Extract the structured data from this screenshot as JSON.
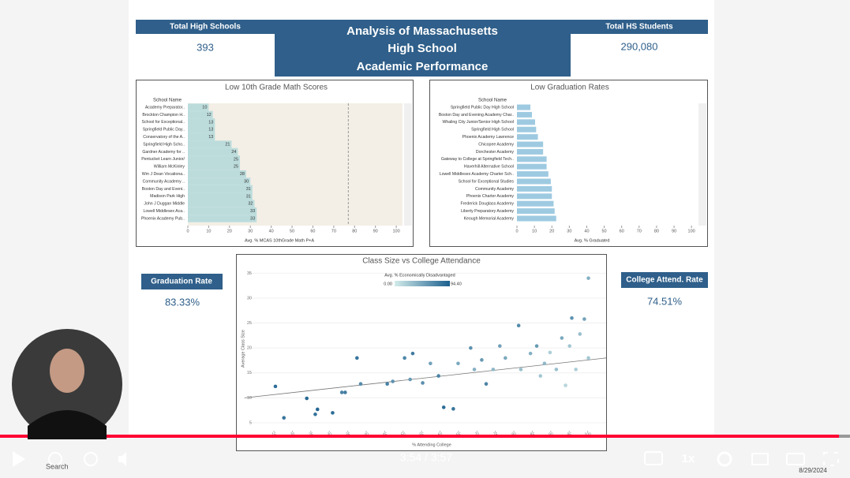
{
  "dashboard": {
    "title_lines": [
      "Analysis of Massachusetts",
      "High School",
      "Academic Performance"
    ],
    "kpis": [
      {
        "label": "Total High Schools",
        "value": "393"
      },
      {
        "label": "Total HS Students",
        "value": "290,080"
      },
      {
        "label": "Graduation Rate",
        "value": "83.33%"
      },
      {
        "label": "College Attend. Rate",
        "value": "74.51%"
      }
    ],
    "math_chart": {
      "type": "bar",
      "title": "Low 10th Grade Math Scores",
      "column_header": "School Name",
      "categories": [
        "Academy Preparator..",
        "Brockton Champion H..",
        "School for Exceptional..",
        "Springfield Public Day..",
        "Conservatory of the A..",
        "Springfield High Scho..",
        "Gardner Academy for ..",
        "Pentucket Learn Junior/",
        "William McKinley",
        "Wm J Dean Vocationa..",
        "Community Academy ..",
        "Boston Day and Eveni..",
        "Madison Park High",
        "John J Duggan Middle",
        "Lowell Middlesex Aca..",
        "Phoenix Academy Pub.."
      ],
      "values": [
        10,
        12,
        13,
        13,
        13,
        21,
        24,
        25,
        25,
        28,
        30,
        31,
        31,
        32,
        33,
        33
      ],
      "color": "#bcdcdc",
      "reference_line": 77,
      "xlim": [
        0,
        103
      ],
      "xticks": [
        0,
        10,
        20,
        30,
        40,
        50,
        60,
        70,
        80,
        90,
        100
      ],
      "x_label": "Avg. % MCAS 10thGrade Math P+A"
    },
    "grad_chart": {
      "type": "bar",
      "title": "Low Graduation Rates",
      "column_header": "School Name",
      "categories": [
        "Springfield Public Day High School",
        "Boston Day and Evening Academy Char..",
        "Whaling City Junior/Senior High School",
        "Springfield High School",
        "Phoenix Academy Lawrence",
        "Chicopee Academy",
        "Dorchester Academy",
        "Gateway to College at Springfield Tech..",
        "Haverhill Alternative School",
        "Lowell Middlesex Academy Charter Sch..",
        "School for Exceptional Studies",
        "Community Academy",
        "Phoenix Charter Academy",
        "Frederick Douglass Academy",
        "Liberty Preparatory Academy",
        "Keough Memorial Academy"
      ],
      "values": [
        7.7,
        8.6,
        10.4,
        11,
        12,
        15,
        15,
        17,
        17,
        18,
        19.4,
        20,
        20,
        21,
        21.6,
        22.5
      ],
      "color": "#9ecae1",
      "xlim": [
        0,
        104
      ],
      "xticks": [
        0,
        10,
        20,
        30,
        40,
        50,
        60,
        70,
        80,
        90,
        100
      ],
      "x_label": "Avg. % Graduated"
    },
    "scatter_chart": {
      "type": "scatter",
      "title": "Class Size vs College Attendance",
      "legend_title": "Avg. % Economically Disadvantaged",
      "legend_ticks": [
        {
          "value": 0,
          "label": "0.00"
        },
        {
          "value": 94.4,
          "label": "94.40"
        }
      ],
      "color_range": [
        "#d3ecea",
        "#1b5f8e"
      ],
      "x": [
        15.4,
        17.7,
        23.9,
        26.2,
        26.8,
        30.9,
        33.4,
        34.3,
        37.5,
        38.5,
        45.7,
        47.2,
        50.4,
        51.9,
        52.6,
        55.3,
        57.4,
        59.6,
        61,
        63.6,
        64.9,
        68.3,
        69.3,
        71.3,
        72.5,
        74.4,
        76.2,
        77.7,
        81.3,
        81.9,
        84.5,
        86.2,
        87.2,
        88.3,
        89.8,
        91.5,
        93,
        94,
        95.1,
        95.7,
        96.8,
        97.9,
        99.1,
        100.2,
        100.2
      ],
      "y": [
        12.3,
        6,
        9.9,
        6.7,
        7.7,
        7,
        11.1,
        11.1,
        18,
        12.8,
        12.8,
        13.3,
        18,
        13.7,
        18.9,
        13,
        16.9,
        14.4,
        8.1,
        7.8,
        16.9,
        20,
        15.7,
        17.6,
        12.8,
        15.7,
        20.4,
        18,
        24.5,
        15.7,
        18.9,
        20.4,
        14.4,
        16.9,
        19.1,
        15.7,
        22,
        12.5,
        20.4,
        26,
        15.7,
        22.8,
        25.8,
        18,
        34
      ],
      "econ": [
        85,
        80,
        88,
        82,
        90,
        86,
        70,
        75,
        80,
        65,
        72,
        60,
        68,
        55,
        75,
        62,
        50,
        70,
        85,
        80,
        45,
        60,
        40,
        55,
        70,
        35,
        50,
        45,
        65,
        30,
        40,
        55,
        25,
        35,
        20,
        30,
        45,
        15,
        25,
        60,
        20,
        30,
        50,
        25,
        40
      ],
      "trendline": {
        "x": [
          7,
          105
        ],
        "y": [
          10,
          18
        ]
      },
      "xlim": [
        6,
        105
      ],
      "xticks": [
        15,
        20,
        25,
        30,
        35,
        40,
        45,
        50,
        55,
        60,
        65,
        70,
        75,
        80,
        85,
        90,
        95,
        100
      ],
      "ylim": [
        2,
        36
      ],
      "yticks": [
        5,
        10,
        15,
        20,
        25,
        30,
        35
      ],
      "x_label": "% Attending College",
      "y_label": "Average Class Size"
    }
  },
  "player": {
    "time": "3:54 / 3:57",
    "speed": "1x",
    "search": "Search",
    "date": "8/29/2024"
  }
}
